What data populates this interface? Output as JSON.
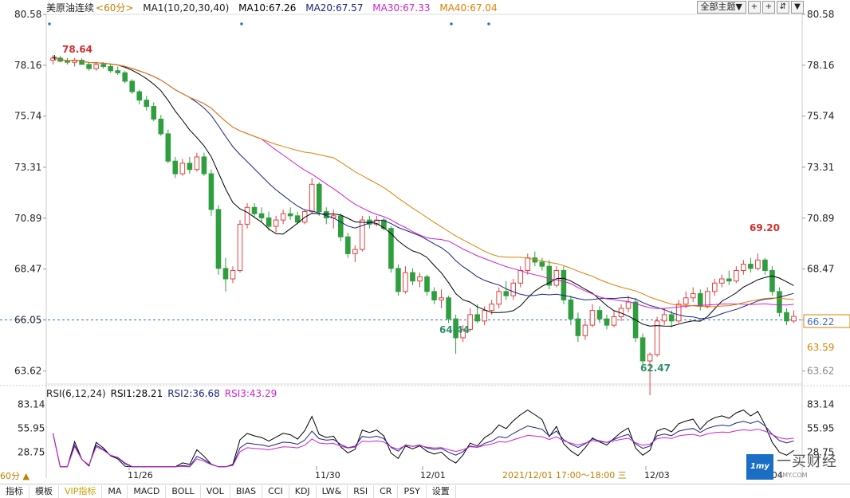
{
  "legend": {
    "symbol": "美原油连续",
    "period": "<60分>",
    "ma_def": "MA1(10,20,30,40)",
    "ma10": "MA10:67.26",
    "ma20": "MA20:67.57",
    "ma30": "MA30:67.33",
    "ma40": "MA40:67.04"
  },
  "toolbar": {
    "theme_label": "全部主题▼",
    "btn1": "+",
    "btn2": "+",
    "btn3": "⇵",
    "btn4": "▼"
  },
  "price_axis": {
    "ticks": [
      "80.58",
      "78.16",
      "75.74",
      "73.31",
      "70.89",
      "68.47",
      "66.05",
      "63.62"
    ],
    "ref_price": 66.05,
    "current_label": "66.22",
    "lower_label": "63.59"
  },
  "annotations": {
    "high_start": "78.64",
    "low1": "64.44",
    "low2": "62.47",
    "high_end": "69.20"
  },
  "rsi": {
    "title": "RSI(6,12,24)",
    "rsi1": "RSI1:28.21",
    "rsi2": "RSI2:36.68",
    "rsi3": "RSI3:43.29",
    "ticks": [
      "83.14",
      "55.95",
      "28.75"
    ]
  },
  "x_axis": {
    "labels": [
      "11/26",
      "11/30",
      "12/01",
      "12/03",
      "12/04"
    ],
    "hover": "2021/12/01 17:00～18:00 三"
  },
  "side_tag": "60分 ▲",
  "tabs": [
    "指标",
    "模板",
    "VIP指标",
    "MA",
    "MACD",
    "BOLL",
    "VOL",
    "BIAS",
    "CCI",
    "KDJ",
    "LW&",
    "RSI",
    "CR",
    "PSY",
    "设置"
  ],
  "logo": {
    "name": "一买财经",
    "url": "1MY.COM",
    "mark": "1my"
  },
  "colors": {
    "up": "#e04040",
    "down": "#2e9e3e",
    "ma10": "#000000",
    "ma20": "#1a237e",
    "ma30": "#d020d0",
    "ma40": "#e08000",
    "rsi1": "#000000",
    "rsi2": "#1a237e",
    "rsi3": "#d020d0"
  },
  "chart_data": {
    "type": "candlestick",
    "title": "美原油连续 60分",
    "ylim": [
      63.0,
      80.58
    ],
    "candles": [
      [
        78.4,
        78.64,
        78.2,
        78.5
      ],
      [
        78.5,
        78.6,
        78.3,
        78.35
      ],
      [
        78.35,
        78.5,
        78.2,
        78.3
      ],
      [
        78.3,
        78.5,
        78.1,
        78.4
      ],
      [
        78.4,
        78.5,
        78.2,
        78.2
      ],
      [
        78.2,
        78.3,
        77.9,
        78.0
      ],
      [
        78.0,
        78.3,
        77.9,
        78.2
      ],
      [
        78.2,
        78.3,
        78.0,
        78.1
      ],
      [
        78.1,
        78.2,
        77.8,
        77.9
      ],
      [
        77.9,
        78.1,
        77.7,
        77.8
      ],
      [
        77.8,
        77.9,
        77.3,
        77.4
      ],
      [
        77.4,
        77.5,
        76.8,
        76.9
      ],
      [
        76.9,
        77.0,
        76.3,
        76.5
      ],
      [
        76.5,
        76.7,
        76.0,
        76.2
      ],
      [
        76.2,
        76.4,
        75.5,
        75.6
      ],
      [
        75.6,
        75.8,
        74.8,
        74.9
      ],
      [
        74.9,
        75.1,
        73.5,
        73.6
      ],
      [
        73.6,
        73.8,
        72.8,
        73.0
      ],
      [
        73.0,
        73.7,
        72.9,
        73.5
      ],
      [
        73.5,
        73.8,
        73.0,
        73.2
      ],
      [
        73.2,
        74.0,
        73.1,
        73.8
      ],
      [
        73.8,
        74.0,
        72.9,
        73.0
      ],
      [
        73.0,
        73.2,
        71.0,
        71.3
      ],
      [
        71.3,
        71.5,
        68.2,
        68.5
      ],
      [
        68.5,
        69.0,
        67.4,
        68.0
      ],
      [
        68.0,
        68.6,
        67.8,
        68.4
      ],
      [
        68.4,
        70.8,
        68.3,
        70.6
      ],
      [
        70.6,
        71.6,
        70.4,
        71.4
      ],
      [
        71.4,
        71.6,
        70.9,
        71.1
      ],
      [
        71.1,
        71.4,
        70.7,
        70.9
      ],
      [
        70.9,
        71.2,
        70.3,
        70.5
      ],
      [
        70.5,
        71.0,
        70.2,
        70.8
      ],
      [
        70.8,
        71.3,
        70.6,
        71.1
      ],
      [
        71.1,
        71.4,
        70.8,
        71.0
      ],
      [
        71.0,
        71.2,
        70.6,
        70.7
      ],
      [
        70.7,
        71.3,
        70.6,
        71.2
      ],
      [
        71.2,
        72.8,
        71.1,
        72.5
      ],
      [
        72.5,
        72.6,
        71.0,
        71.2
      ],
      [
        71.2,
        71.4,
        70.6,
        70.9
      ],
      [
        70.9,
        71.3,
        70.4,
        71.0
      ],
      [
        71.0,
        71.1,
        69.8,
        70.0
      ],
      [
        70.0,
        70.2,
        69.0,
        69.2
      ],
      [
        69.2,
        69.6,
        68.8,
        69.4
      ],
      [
        69.4,
        71.0,
        69.3,
        70.8
      ],
      [
        70.8,
        71.0,
        70.4,
        70.6
      ],
      [
        70.6,
        71.0,
        70.5,
        70.8
      ],
      [
        70.8,
        70.9,
        70.3,
        70.4
      ],
      [
        70.4,
        70.5,
        68.3,
        68.5
      ],
      [
        68.5,
        68.7,
        67.2,
        67.4
      ],
      [
        67.4,
        68.6,
        67.3,
        68.3
      ],
      [
        68.3,
        68.5,
        67.7,
        67.9
      ],
      [
        67.9,
        68.3,
        67.6,
        68.1
      ],
      [
        68.1,
        68.2,
        67.2,
        67.4
      ],
      [
        67.4,
        67.6,
        66.8,
        67.0
      ],
      [
        67.0,
        67.5,
        66.6,
        67.1
      ],
      [
        67.1,
        67.2,
        65.9,
        66.1
      ],
      [
        66.1,
        66.3,
        64.44,
        65.2
      ],
      [
        65.2,
        65.8,
        65.0,
        65.6
      ],
      [
        65.6,
        66.6,
        65.5,
        66.3
      ],
      [
        66.3,
        66.8,
        65.9,
        66.0
      ],
      [
        66.0,
        66.7,
        65.8,
        66.5
      ],
      [
        66.5,
        67.0,
        66.3,
        66.8
      ],
      [
        66.8,
        67.6,
        66.6,
        67.4
      ],
      [
        67.4,
        67.9,
        67.0,
        67.2
      ],
      [
        67.2,
        68.0,
        67.0,
        67.8
      ],
      [
        67.8,
        68.6,
        67.6,
        68.4
      ],
      [
        68.4,
        69.2,
        68.2,
        69.0
      ],
      [
        69.0,
        69.3,
        68.6,
        68.8
      ],
      [
        68.8,
        69.0,
        68.4,
        68.6
      ],
      [
        68.6,
        68.9,
        67.5,
        67.7
      ],
      [
        67.7,
        68.6,
        67.6,
        68.4
      ],
      [
        68.4,
        68.6,
        66.8,
        67.0
      ],
      [
        67.0,
        67.2,
        65.8,
        66.1
      ],
      [
        66.1,
        66.4,
        65.0,
        65.3
      ],
      [
        65.3,
        66.0,
        65.1,
        65.8
      ],
      [
        65.8,
        66.8,
        65.7,
        66.5
      ],
      [
        66.5,
        66.7,
        65.9,
        66.1
      ],
      [
        66.1,
        66.3,
        65.6,
        65.8
      ],
      [
        65.8,
        66.5,
        65.7,
        66.2
      ],
      [
        66.2,
        66.8,
        66.0,
        66.6
      ],
      [
        66.6,
        67.2,
        66.4,
        66.9
      ],
      [
        66.9,
        67.1,
        65.0,
        65.2
      ],
      [
        65.2,
        65.4,
        63.9,
        64.1
      ],
      [
        64.1,
        64.5,
        62.47,
        64.4
      ],
      [
        64.4,
        66.2,
        64.3,
        66.0
      ],
      [
        66.0,
        66.6,
        65.8,
        66.3
      ],
      [
        66.3,
        66.5,
        65.7,
        66.0
      ],
      [
        66.0,
        67.0,
        65.9,
        66.8
      ],
      [
        66.8,
        67.4,
        66.6,
        67.1
      ],
      [
        67.1,
        67.6,
        66.9,
        67.3
      ],
      [
        67.3,
        67.5,
        66.5,
        66.7
      ],
      [
        66.7,
        67.6,
        66.6,
        67.4
      ],
      [
        67.4,
        68.0,
        67.2,
        67.8
      ],
      [
        67.8,
        68.2,
        67.6,
        68.0
      ],
      [
        68.0,
        68.4,
        67.7,
        67.9
      ],
      [
        67.9,
        68.6,
        67.8,
        68.4
      ],
      [
        68.4,
        68.9,
        68.2,
        68.7
      ],
      [
        68.7,
        69.0,
        68.3,
        68.5
      ],
      [
        68.5,
        69.2,
        68.4,
        68.9
      ],
      [
        68.9,
        69.0,
        68.2,
        68.4
      ],
      [
        68.4,
        68.6,
        67.2,
        67.4
      ],
      [
        67.4,
        67.6,
        66.2,
        66.4
      ],
      [
        66.4,
        66.6,
        65.8,
        66.0
      ],
      [
        66.0,
        66.5,
        65.9,
        66.22
      ]
    ]
  }
}
